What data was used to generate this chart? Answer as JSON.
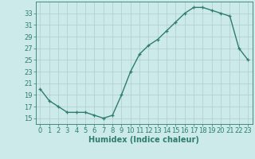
{
  "x": [
    0,
    1,
    2,
    3,
    4,
    5,
    6,
    7,
    8,
    9,
    10,
    11,
    12,
    13,
    14,
    15,
    16,
    17,
    18,
    19,
    20,
    21,
    22,
    23
  ],
  "y": [
    20,
    18,
    17,
    16,
    16,
    16,
    15.5,
    15,
    15.5,
    19,
    23,
    26,
    27.5,
    28.5,
    30,
    31.5,
    33,
    34,
    34,
    33.5,
    33,
    32.5,
    27,
    25
  ],
  "line_color": "#2e7d6e",
  "marker": "+",
  "marker_size": 3.5,
  "marker_linewidth": 0.9,
  "bg_color": "#cceaea",
  "grid_color": "#b0cccc",
  "xlabel": "Humidex (Indice chaleur)",
  "xlim": [
    -0.5,
    23.5
  ],
  "ylim": [
    14,
    35
  ],
  "yticks": [
    15,
    17,
    19,
    21,
    23,
    25,
    27,
    29,
    31,
    33
  ],
  "xticks": [
    0,
    1,
    2,
    3,
    4,
    5,
    6,
    7,
    8,
    9,
    10,
    11,
    12,
    13,
    14,
    15,
    16,
    17,
    18,
    19,
    20,
    21,
    22,
    23
  ],
  "font_color": "#2e7d6e",
  "xlabel_fontsize": 7,
  "tick_fontsize": 6,
  "linewidth": 1.0
}
